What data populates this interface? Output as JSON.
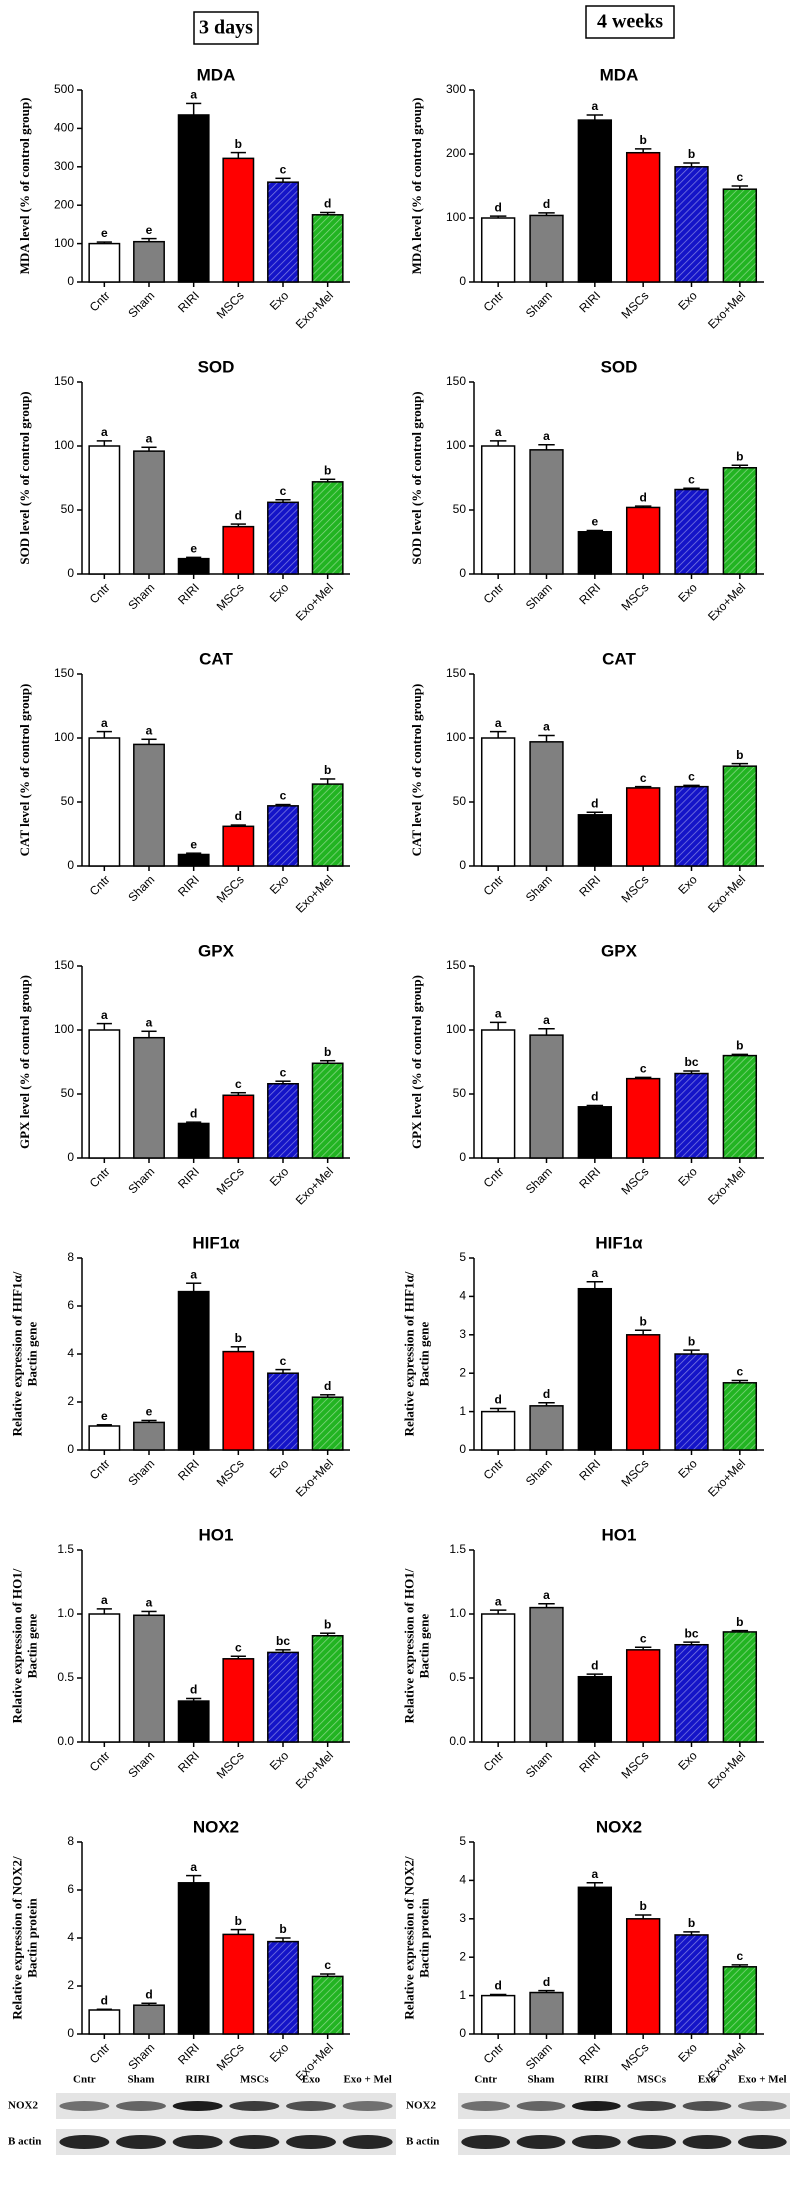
{
  "header": {
    "left": "3 days",
    "right": "4 weeks"
  },
  "chart_data": [
    {
      "type": "bar",
      "title": "MDA",
      "ylabel": [
        "MDA level (% of control group)"
      ],
      "categories": [
        "Cntr",
        "Sham",
        "RIRI",
        "MSCs",
        "Exo",
        "Exo+Mel"
      ],
      "values": [
        100,
        105,
        435,
        322,
        260,
        175
      ],
      "errors": [
        4,
        8,
        30,
        15,
        10,
        6
      ],
      "letters": [
        "e",
        "e",
        "a",
        "b",
        "c",
        "d"
      ],
      "colors": [
        "#ffffff",
        "#808080",
        "#000000",
        "#ff0000",
        "#1414c8",
        "#22b422"
      ],
      "hatch": [
        false,
        false,
        false,
        false,
        true,
        true
      ],
      "ylim": [
        0,
        500
      ],
      "yticks": [
        0,
        100,
        200,
        300,
        400,
        500
      ]
    },
    {
      "type": "bar",
      "title": "MDA",
      "ylabel": [
        "MDA level (% of control group)"
      ],
      "categories": [
        "Cntr",
        "Sham",
        "RIRI",
        "MSCs",
        "Exo",
        "Exo+Mel"
      ],
      "values": [
        100,
        104,
        253,
        202,
        180,
        145
      ],
      "errors": [
        3,
        4,
        8,
        6,
        6,
        5
      ],
      "letters": [
        "d",
        "d",
        "a",
        "b",
        "b",
        "c"
      ],
      "colors": [
        "#ffffff",
        "#808080",
        "#000000",
        "#ff0000",
        "#1414c8",
        "#22b422"
      ],
      "hatch": [
        false,
        false,
        false,
        false,
        true,
        true
      ],
      "ylim": [
        0,
        300
      ],
      "yticks": [
        0,
        100,
        200,
        300
      ]
    },
    {
      "type": "bar",
      "title": "SOD",
      "ylabel": [
        "SOD level (% of control group)"
      ],
      "categories": [
        "Cntr",
        "Sham",
        "RIRI",
        "MSCs",
        "Exo",
        "Exo+Mel"
      ],
      "values": [
        100,
        96,
        12,
        37,
        56,
        72
      ],
      "errors": [
        4,
        3,
        1,
        2,
        2,
        2
      ],
      "letters": [
        "a",
        "a",
        "e",
        "d",
        "c",
        "b"
      ],
      "colors": [
        "#ffffff",
        "#808080",
        "#000000",
        "#ff0000",
        "#1414c8",
        "#22b422"
      ],
      "hatch": [
        false,
        false,
        false,
        false,
        true,
        true
      ],
      "ylim": [
        0,
        150
      ],
      "yticks": [
        0,
        50,
        100,
        150
      ]
    },
    {
      "type": "bar",
      "title": "SOD",
      "ylabel": [
        "SOD level (% of control group)"
      ],
      "categories": [
        "Cntr",
        "Sham",
        "RIRI",
        "MSCs",
        "Exo",
        "Exo+Mel"
      ],
      "values": [
        100,
        97,
        33,
        52,
        66,
        83
      ],
      "errors": [
        4,
        4,
        1,
        1,
        1,
        2
      ],
      "letters": [
        "a",
        "a",
        "e",
        "d",
        "c",
        "b"
      ],
      "colors": [
        "#ffffff",
        "#808080",
        "#000000",
        "#ff0000",
        "#1414c8",
        "#22b422"
      ],
      "hatch": [
        false,
        false,
        false,
        false,
        true,
        true
      ],
      "ylim": [
        0,
        150
      ],
      "yticks": [
        0,
        50,
        100,
        150
      ]
    },
    {
      "type": "bar",
      "title": "CAT",
      "ylabel": [
        "CAT level (% of control group)"
      ],
      "categories": [
        "Cntr",
        "Sham",
        "RIRI",
        "MSCs",
        "Exo",
        "Exo+Mel"
      ],
      "values": [
        100,
        95,
        9,
        31,
        47,
        64
      ],
      "errors": [
        5,
        4,
        1,
        1,
        1,
        4
      ],
      "letters": [
        "a",
        "a",
        "e",
        "d",
        "c",
        "b"
      ],
      "colors": [
        "#ffffff",
        "#808080",
        "#000000",
        "#ff0000",
        "#1414c8",
        "#22b422"
      ],
      "hatch": [
        false,
        false,
        false,
        false,
        true,
        true
      ],
      "ylim": [
        0,
        150
      ],
      "yticks": [
        0,
        50,
        100,
        150
      ]
    },
    {
      "type": "bar",
      "title": "CAT",
      "ylabel": [
        "CAT level (% of control group)"
      ],
      "categories": [
        "Cntr",
        "Sham",
        "RIRI",
        "MSCs",
        "Exo",
        "Exo+Mel"
      ],
      "values": [
        100,
        97,
        40,
        61,
        62,
        78
      ],
      "errors": [
        5,
        5,
        2,
        1,
        1,
        2
      ],
      "letters": [
        "a",
        "a",
        "d",
        "c",
        "c",
        "b"
      ],
      "colors": [
        "#ffffff",
        "#808080",
        "#000000",
        "#ff0000",
        "#1414c8",
        "#22b422"
      ],
      "hatch": [
        false,
        false,
        false,
        false,
        true,
        true
      ],
      "ylim": [
        0,
        150
      ],
      "yticks": [
        0,
        50,
        100,
        150
      ]
    },
    {
      "type": "bar",
      "title": "GPX",
      "ylabel": [
        "GPX level (% of control group)"
      ],
      "categories": [
        "Cntr",
        "Sham",
        "RIRI",
        "MSCs",
        "Exo",
        "Exo+Mel"
      ],
      "values": [
        100,
        94,
        27,
        49,
        58,
        74
      ],
      "errors": [
        5,
        5,
        1,
        2,
        2,
        2
      ],
      "letters": [
        "a",
        "a",
        "d",
        "c",
        "c",
        "b"
      ],
      "colors": [
        "#ffffff",
        "#808080",
        "#000000",
        "#ff0000",
        "#1414c8",
        "#22b422"
      ],
      "hatch": [
        false,
        false,
        false,
        false,
        true,
        true
      ],
      "ylim": [
        0,
        150
      ],
      "yticks": [
        0,
        50,
        100,
        150
      ]
    },
    {
      "type": "bar",
      "title": "GPX",
      "ylabel": [
        "GPX level (% of control group)"
      ],
      "categories": [
        "Cntr",
        "Sham",
        "RIRI",
        "MSCs",
        "Exo",
        "Exo+Mel"
      ],
      "values": [
        100,
        96,
        40,
        62,
        66,
        80
      ],
      "errors": [
        6,
        5,
        1,
        1,
        2,
        1
      ],
      "letters": [
        "a",
        "a",
        "d",
        "c",
        "bc",
        "b"
      ],
      "colors": [
        "#ffffff",
        "#808080",
        "#000000",
        "#ff0000",
        "#1414c8",
        "#22b422"
      ],
      "hatch": [
        false,
        false,
        false,
        false,
        true,
        true
      ],
      "ylim": [
        0,
        150
      ],
      "yticks": [
        0,
        50,
        100,
        150
      ]
    },
    {
      "type": "bar",
      "title": "HIF1α",
      "ylabel": [
        "Relative expression of HIF1α/",
        "Bactin gene"
      ],
      "categories": [
        "Cntr",
        "Sham",
        "RIRI",
        "MSCs",
        "Exo",
        "Exo+Mel"
      ],
      "values": [
        1,
        1.15,
        6.6,
        4.1,
        3.2,
        2.2
      ],
      "errors": [
        0.05,
        0.08,
        0.35,
        0.2,
        0.15,
        0.1
      ],
      "letters": [
        "e",
        "e",
        "a",
        "b",
        "c",
        "d"
      ],
      "colors": [
        "#ffffff",
        "#808080",
        "#000000",
        "#ff0000",
        "#1414c8",
        "#22b422"
      ],
      "hatch": [
        false,
        false,
        false,
        false,
        true,
        true
      ],
      "ylim": [
        0,
        8
      ],
      "yticks": [
        0,
        2,
        4,
        6,
        8
      ]
    },
    {
      "type": "bar",
      "title": "HIF1α",
      "ylabel": [
        "Relative expression of HIF1α/",
        "Bactin gene"
      ],
      "categories": [
        "Cntr",
        "Sham",
        "RIRI",
        "MSCs",
        "Exo",
        "Exo+Mel"
      ],
      "values": [
        1,
        1.15,
        4.2,
        3.0,
        2.5,
        1.75
      ],
      "errors": [
        0.08,
        0.08,
        0.18,
        0.12,
        0.1,
        0.06
      ],
      "letters": [
        "d",
        "d",
        "a",
        "b",
        "b",
        "c"
      ],
      "colors": [
        "#ffffff",
        "#808080",
        "#000000",
        "#ff0000",
        "#1414c8",
        "#22b422"
      ],
      "hatch": [
        false,
        false,
        false,
        false,
        true,
        true
      ],
      "ylim": [
        0,
        5
      ],
      "yticks": [
        0,
        1,
        2,
        3,
        4,
        5
      ]
    },
    {
      "type": "bar",
      "title": "HO1",
      "ylabel": [
        "Relative expression of HO1/",
        "Bactin gene"
      ],
      "categories": [
        "Cntr",
        "Sham",
        "RIRI",
        "MSCs",
        "Exo",
        "Exo+Mel"
      ],
      "values": [
        1.0,
        0.99,
        0.32,
        0.65,
        0.7,
        0.83
      ],
      "errors": [
        0.04,
        0.03,
        0.02,
        0.02,
        0.02,
        0.02
      ],
      "letters": [
        "a",
        "a",
        "d",
        "c",
        "bc",
        "b"
      ],
      "colors": [
        "#ffffff",
        "#808080",
        "#000000",
        "#ff0000",
        "#1414c8",
        "#22b422"
      ],
      "hatch": [
        false,
        false,
        false,
        false,
        true,
        true
      ],
      "ylim": [
        0,
        1.5
      ],
      "yticks": [
        {
          "value": 0,
          "label": "0.0"
        },
        {
          "value": 0.5,
          "label": "0.5"
        },
        {
          "value": 1,
          "label": "1.0"
        },
        {
          "value": 1.5,
          "label": "1.5"
        }
      ]
    },
    {
      "type": "bar",
      "title": "HO1",
      "ylabel": [
        "Relative expression of HO1/",
        "Bactin gene"
      ],
      "categories": [
        "Cntr",
        "Sham",
        "RIRI",
        "MSCs",
        "Exo",
        "Exo+Mel"
      ],
      "values": [
        1.0,
        1.05,
        0.51,
        0.72,
        0.76,
        0.86
      ],
      "errors": [
        0.03,
        0.03,
        0.02,
        0.02,
        0.02,
        0.01
      ],
      "letters": [
        "a",
        "a",
        "d",
        "c",
        "bc",
        "b"
      ],
      "colors": [
        "#ffffff",
        "#808080",
        "#000000",
        "#ff0000",
        "#1414c8",
        "#22b422"
      ],
      "hatch": [
        false,
        false,
        false,
        false,
        true,
        true
      ],
      "ylim": [
        0,
        1.5
      ],
      "yticks": [
        {
          "value": 0,
          "label": "0.0"
        },
        {
          "value": 0.5,
          "label": "0.5"
        },
        {
          "value": 1,
          "label": "1.0"
        },
        {
          "value": 1.5,
          "label": "1.5"
        }
      ]
    },
    {
      "type": "bar",
      "title": "NOX2",
      "ylabel": [
        "Relative expression of NOX2/",
        "Bactin protein"
      ],
      "categories": [
        "Cntr",
        "Sham",
        "RIRI",
        "MSCs",
        "Exo",
        "Exo+Mel"
      ],
      "values": [
        1,
        1.2,
        6.3,
        4.15,
        3.85,
        2.4
      ],
      "errors": [
        0.03,
        0.08,
        0.3,
        0.2,
        0.15,
        0.1
      ],
      "letters": [
        "d",
        "d",
        "a",
        "b",
        "b",
        "c"
      ],
      "colors": [
        "#ffffff",
        "#808080",
        "#000000",
        "#ff0000",
        "#1414c8",
        "#22b422"
      ],
      "hatch": [
        false,
        false,
        false,
        false,
        true,
        true
      ],
      "ylim": [
        0,
        8
      ],
      "yticks": [
        0,
        2,
        4,
        6,
        8
      ]
    },
    {
      "type": "bar",
      "title": "NOX2",
      "ylabel": [
        "Relative expression of NOX2/",
        "Bactin protein"
      ],
      "categories": [
        "Cntr",
        "Sham",
        "RIRI",
        "MSCs",
        "Exo",
        "Exo+Mel"
      ],
      "values": [
        1,
        1.08,
        3.82,
        3.0,
        2.58,
        1.75
      ],
      "errors": [
        0.03,
        0.05,
        0.12,
        0.1,
        0.08,
        0.05
      ],
      "letters": [
        "d",
        "d",
        "a",
        "b",
        "b",
        "c"
      ],
      "colors": [
        "#ffffff",
        "#808080",
        "#000000",
        "#ff0000",
        "#1414c8",
        "#22b422"
      ],
      "hatch": [
        false,
        false,
        false,
        false,
        true,
        true
      ],
      "ylim": [
        0,
        5
      ],
      "yticks": [
        0,
        1,
        2,
        3,
        4,
        5
      ]
    }
  ],
  "blots": [
    {
      "lanes": [
        "Cntr",
        "Sham",
        "RIRI",
        "MSCs",
        "Exo",
        "Exo + Mel"
      ],
      "rows": [
        "NOX2",
        "B actin"
      ]
    },
    {
      "lanes": [
        "Cntr",
        "Sham",
        "RIRI",
        "MSCs",
        "Exo",
        "Exo + Mel"
      ],
      "rows": [
        "NOX2",
        "B actin"
      ]
    }
  ]
}
